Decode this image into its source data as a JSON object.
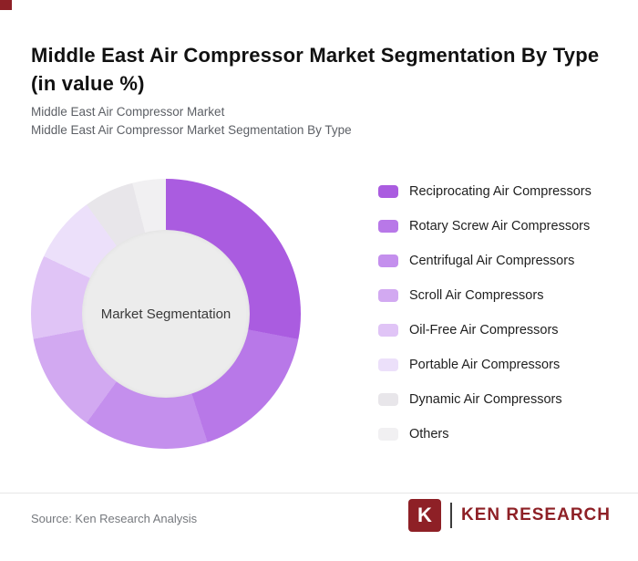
{
  "page": {
    "title": "Middle East Air Compressor Market Segmentation By Type (in value %)",
    "subtitle_line1": "Middle East Air Compressor Market",
    "subtitle_line2": "Middle East Air Compressor Market Segmentation By Type",
    "corner_accent_color": "#8e2026"
  },
  "chart_data": {
    "type": "pie",
    "variant": "donut",
    "title": "Middle East Air Compressor Market Segmentation By Type (in value %)",
    "units": "value %",
    "center_label": "Market Segmentation",
    "center_fill_color": "#ececec",
    "donut_hole_ratio": 0.62,
    "start_angle_deg": 0,
    "direction": "clockwise",
    "legend_position": "right",
    "segments": [
      {
        "label": "Reciprocating Air Compressors",
        "value": 28,
        "color": "#aa5ce0"
      },
      {
        "label": "Rotary Screw Air Compressors",
        "value": 17,
        "color": "#b878e8"
      },
      {
        "label": "Centrifugal Air Compressors",
        "value": 15,
        "color": "#c48fed"
      },
      {
        "label": "Scroll Air Compressors",
        "value": 12,
        "color": "#d2a9f1"
      },
      {
        "label": "Oil-Free Air Compressors",
        "value": 10,
        "color": "#e0c4f6"
      },
      {
        "label": "Portable Air Compressors",
        "value": 8,
        "color": "#ece0fa"
      },
      {
        "label": "Dynamic Air Compressors",
        "value": 6,
        "color": "#e8e6ea"
      },
      {
        "label": "Others",
        "value": 4,
        "color": "#f1f0f2"
      }
    ]
  },
  "footer": {
    "source_text": "Source: Ken Research Analysis",
    "logo": {
      "icon_letter": "K",
      "brand_text": "KEN RESEARCH",
      "brand_color": "#8e2026"
    }
  }
}
